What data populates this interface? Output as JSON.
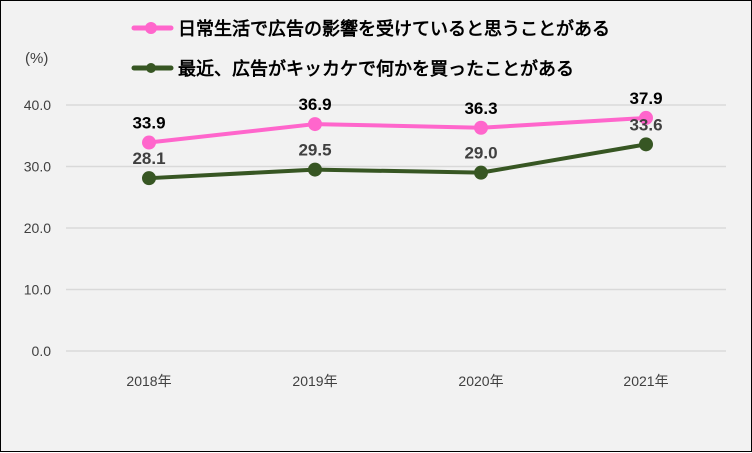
{
  "chart_data": {
    "type": "line",
    "categories": [
      "2018年",
      "2019年",
      "2020年",
      "2021年"
    ],
    "ylabel": "(%)",
    "ylim": [
      0,
      40
    ],
    "yticks": [
      "0.0",
      "10.0",
      "20.0",
      "30.0",
      "40.0"
    ],
    "ytick_values": [
      0,
      10,
      20,
      30,
      40
    ],
    "grid": true,
    "legend_position": "top",
    "series": [
      {
        "name": "日常生活で広告の影響を受けていると思うことがある",
        "values": [
          33.9,
          36.9,
          36.3,
          37.9
        ],
        "labels": [
          "33.9",
          "36.9",
          "36.3",
          "37.9"
        ],
        "color": "#ff66cc",
        "label_color": "#000000"
      },
      {
        "name": "最近、広告がキッカケで何かを買ったことがある",
        "values": [
          28.1,
          29.5,
          29.0,
          33.6
        ],
        "labels": [
          "28.1",
          "29.5",
          "29.0",
          "33.6"
        ],
        "color": "#375623",
        "label_color": "#404040"
      }
    ]
  }
}
